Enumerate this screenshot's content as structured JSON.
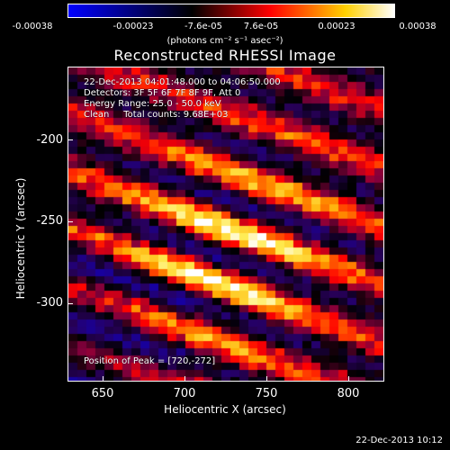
{
  "colorbar": {
    "ticks": [
      "-0.00038",
      "-0.00023",
      "-7.6e-05",
      "7.6e-05",
      "0.00023",
      "0.00038"
    ],
    "colors": [
      "#0000ff",
      "#000000",
      "#ff0000",
      "#ffd000",
      "#ffffff"
    ]
  },
  "units": "(photons cm⁻² s⁻¹ asec⁻²)",
  "title": "Reconstructed RHESSI Image",
  "info": {
    "line1": "22-Dec-2013 04:01:48.000 to 04:06:50.000",
    "line2": "Detectors: 3F 5F 6F 7F 8F 9F, Att 0",
    "line3": "Energy Range: 25.0 - 50.0 keV",
    "line4": "Clean     Total counts: 9.68E+03",
    "peak": "Position of Peak = [720,-272]"
  },
  "axes": {
    "xlabel": "Heliocentric X (arcsec)",
    "ylabel": "Heliocentric Y (arcsec)",
    "xticks": [
      "650",
      "700",
      "750",
      "800"
    ],
    "yticks": [
      "-200",
      "-250",
      "-300"
    ],
    "xlim": [
      628,
      822
    ],
    "ylim": [
      -352,
      -158
    ]
  },
  "timestamp": "22-Dec-2013 10:12"
}
